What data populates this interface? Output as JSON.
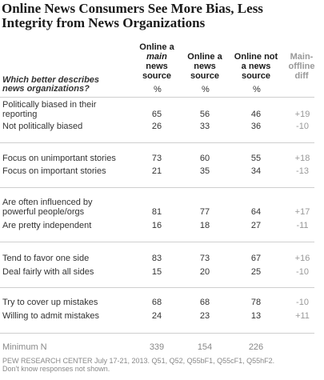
{
  "title": {
    "line1": "Online News Consumers See More Bias, Less",
    "line2": "Integrity from News Organizations"
  },
  "headers": {
    "col1": [
      "Online a",
      "main",
      "news",
      "source"
    ],
    "col2": [
      "Online a",
      "news",
      "source"
    ],
    "col3": [
      "Online not",
      "a news",
      "source"
    ],
    "col4": [
      "Main-",
      "offline",
      "diff"
    ],
    "percent": "%"
  },
  "question": [
    "Which better describes",
    "news organizations?"
  ],
  "groups": [
    {
      "rows": [
        {
          "label": [
            "Politically biased in their",
            "reporting"
          ],
          "values": [
            "65",
            "56",
            "46"
          ],
          "diff": "+19"
        },
        {
          "label": [
            "Not politically biased"
          ],
          "values": [
            "26",
            "33",
            "36"
          ],
          "diff": "-10"
        }
      ]
    },
    {
      "rows": [
        {
          "label": [
            "Focus on unimportant stories"
          ],
          "values": [
            "73",
            "60",
            "55"
          ],
          "diff": "+18"
        },
        {
          "label": [
            "Focus on important stories"
          ],
          "values": [
            "21",
            "35",
            "34"
          ],
          "diff": "-13"
        }
      ]
    },
    {
      "rows": [
        {
          "label": [
            "Are often influenced by",
            "powerful people/orgs"
          ],
          "values": [
            "81",
            "77",
            "64"
          ],
          "diff": "+17"
        },
        {
          "label": [
            "Are pretty independent"
          ],
          "values": [
            "16",
            "18",
            "27"
          ],
          "diff": "-11"
        }
      ]
    },
    {
      "rows": [
        {
          "label": [
            "Tend to favor one side"
          ],
          "values": [
            "83",
            "73",
            "67"
          ],
          "diff": "+16"
        },
        {
          "label": [
            "Deal fairly with all sides"
          ],
          "values": [
            "15",
            "20",
            "25"
          ],
          "diff": "-10"
        }
      ]
    },
    {
      "rows": [
        {
          "label": [
            "Try to cover up mistakes"
          ],
          "values": [
            "68",
            "68",
            "78"
          ],
          "diff": "-10"
        },
        {
          "label": [
            "Willing to admit mistakes"
          ],
          "values": [
            "24",
            "23",
            "13"
          ],
          "diff": "+11"
        }
      ]
    }
  ],
  "minimum": {
    "label": "Minimum N",
    "values": [
      "339",
      "154",
      "226"
    ]
  },
  "footer": {
    "line1": "PEW RESEARCH CENTER July 17-21, 2013. Q51, Q52, Q55bF1, Q55cF1, Q55hF2.",
    "line2": "Don't know responses not shown."
  }
}
